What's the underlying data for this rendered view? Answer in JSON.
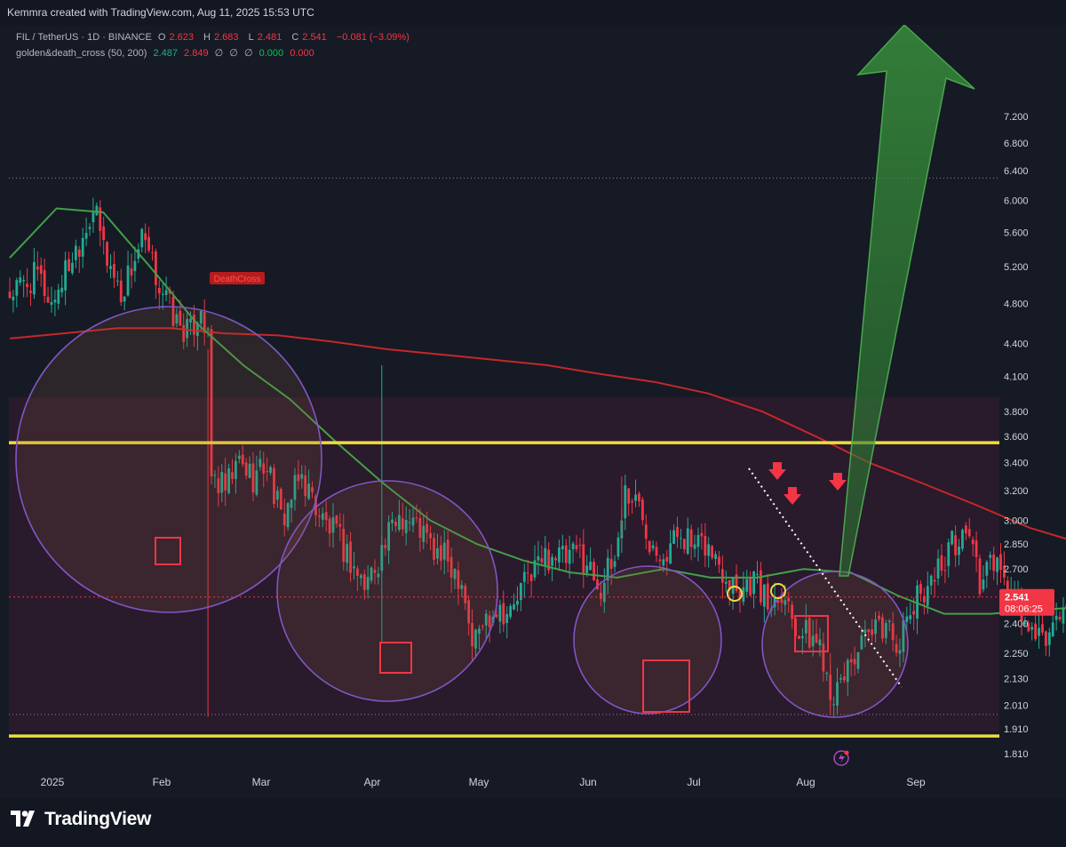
{
  "credit": "Kemmra created with TradingView.com, Aug 11, 2025 15:53 UTC",
  "legend1": {
    "symbol": "FIL / TetherUS · 1D · BINANCE",
    "open_label": "O",
    "open": "2.623",
    "high_label": "H",
    "high": "2.683",
    "low_label": "L",
    "low": "2.481",
    "close_label": "C",
    "close": "2.541",
    "change": "−0.081 (−3.09%)"
  },
  "legend2": {
    "name": "golden&death_cross (50, 200)",
    "v1": "2.487",
    "v2": "2.849",
    "v3": "∅",
    "v4": "∅",
    "v5": "∅",
    "v6": "0.000",
    "v7": "0.000"
  },
  "footer_logo": "TradingView",
  "colors": {
    "background": "#161a25",
    "up": "#22ab94",
    "down": "#f23645",
    "ma50": "#43a047",
    "ma200": "#c62828",
    "support": "#f0dc3c",
    "circles": "#7e57c2",
    "arrow": "#2e7d32"
  },
  "chart_data": {
    "type": "candlestick",
    "y_scale": "log",
    "ylim": [
      1.75,
      7.3
    ],
    "y_ticks": [
      "7.200",
      "6.800",
      "6.400",
      "6.000",
      "5.600",
      "5.200",
      "4.800",
      "4.400",
      "4.100",
      "3.800",
      "3.600",
      "3.400",
      "3.200",
      "3.000",
      "2.850",
      "2.700",
      "2.541",
      "2.400",
      "2.250",
      "2.130",
      "2.010",
      "1.910",
      "1.810"
    ],
    "x_labels": [
      "2025",
      "Feb",
      "Mar",
      "Apr",
      "May",
      "Jun",
      "Jul",
      "Aug",
      "Sep"
    ],
    "last_price": "2.541",
    "countdown": "08:06:25",
    "support_levels": [
      3.55,
      1.88
    ],
    "dotted_levels": [
      6.3,
      1.97
    ],
    "annotation": "DeathCross",
    "series": [
      {
        "name": "50",
        "values": [
          5.3,
          5.9,
          5.85,
          5.2,
          4.6,
          4.2,
          3.9,
          3.55,
          3.25,
          3.0,
          2.85,
          2.75,
          2.68,
          2.65,
          2.7,
          2.65,
          2.65,
          2.7,
          2.68,
          2.55,
          2.45,
          2.45,
          2.47,
          2.487
        ]
      },
      {
        "name": "200",
        "values": [
          4.45,
          4.5,
          4.55,
          4.55,
          4.5,
          4.48,
          4.42,
          4.35,
          4.3,
          4.25,
          4.2,
          4.12,
          4.05,
          3.95,
          3.8,
          3.6,
          3.4,
          3.25,
          3.1,
          2.95,
          2.849
        ]
      }
    ]
  }
}
